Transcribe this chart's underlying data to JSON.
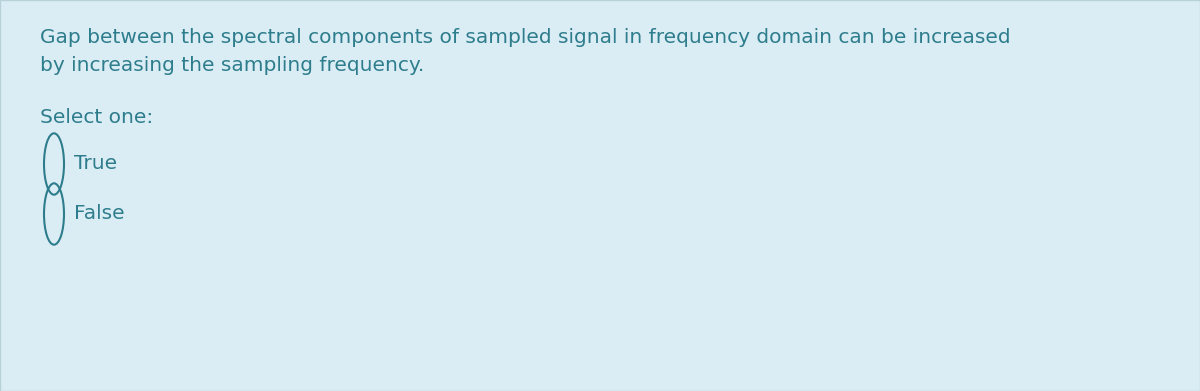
{
  "background_color": "#daedf5",
  "text_color": "#2e7d8c",
  "question_text_line1": "Gap between the spectral components of sampled signal in frequency domain can be increased",
  "question_text_line2": "by increasing the sampling frequency.",
  "select_one_label": "Select one:",
  "options": [
    "True",
    "False"
  ],
  "question_fontsize": 14.5,
  "select_fontsize": 14.5,
  "option_fontsize": 14.5,
  "border_color": "#b8d0d8"
}
